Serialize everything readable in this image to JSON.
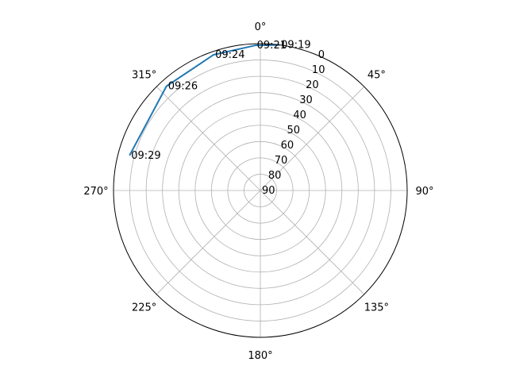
{
  "chart_data": {
    "type": "polar-line",
    "theta_direction": "clockwise",
    "theta_zero": "north",
    "r_axis": {
      "inverted": true,
      "range": [
        90,
        0
      ],
      "ticks": [
        "0",
        "10",
        "20",
        "30",
        "40",
        "50",
        "60",
        "70",
        "80",
        "90"
      ]
    },
    "theta_ticks": [
      "0°",
      "45°",
      "90°",
      "135°",
      "180°",
      "225°",
      "270°",
      "315°"
    ],
    "grid": true,
    "series": [
      {
        "color": "#1f77b4",
        "points": [
          {
            "time": "09:19",
            "azimuth_deg": 7.5,
            "elevation_deg": 0
          },
          {
            "time": "09:21",
            "azimuth_deg": 358,
            "elevation_deg": 1
          },
          {
            "time": "09:24",
            "azimuth_deg": 341,
            "elevation_deg": 2
          },
          {
            "time": "09:26",
            "azimuth_deg": 318,
            "elevation_deg": 4
          },
          {
            "time": "09:29",
            "azimuth_deg": 285,
            "elevation_deg": 7
          }
        ]
      }
    ],
    "point_labels": [
      "09:19",
      "09:21",
      "09:24",
      "09:26",
      "09:29"
    ]
  }
}
